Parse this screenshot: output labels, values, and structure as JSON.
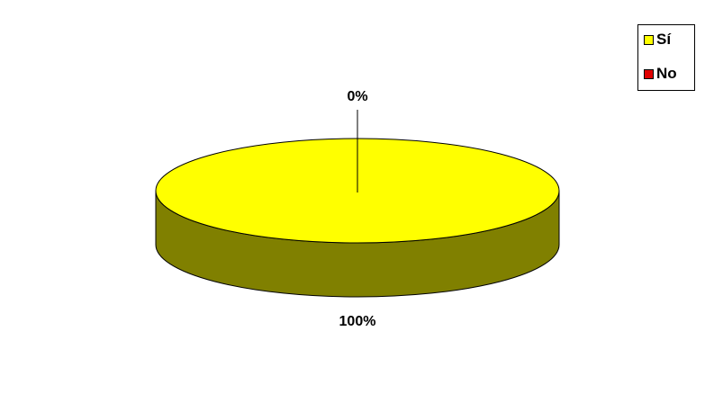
{
  "chart_data": {
    "type": "pie",
    "style": "3d",
    "slices": [
      {
        "label": "Sí",
        "value": 100,
        "data_label": "100%",
        "color": "#FFFF00",
        "side_color": "#808000"
      },
      {
        "label": "No",
        "value": 0,
        "data_label": "0%",
        "color": "#E00000",
        "side_color": "#700000"
      }
    ],
    "legend": {
      "position": "top-right",
      "entries": [
        "Sí",
        "No"
      ]
    },
    "plot_area_color": "#FFFFFF",
    "outline_color": "#000000"
  }
}
